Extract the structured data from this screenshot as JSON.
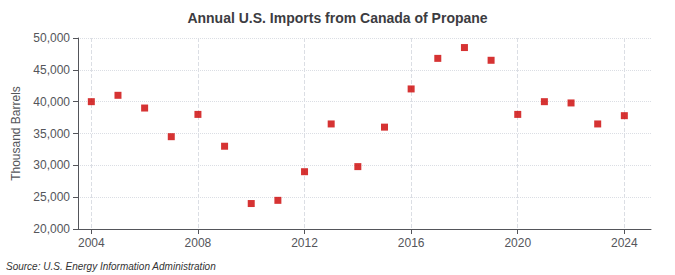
{
  "chart_data": {
    "type": "scatter",
    "title": "Annual U.S. Imports from Canada of Propane",
    "ylabel": "Thousand Barrels",
    "annotation": "Source: U.S. Energy Information Administration",
    "x": [
      2004,
      2005,
      2006,
      2007,
      2008,
      2009,
      2010,
      2011,
      2012,
      2013,
      2014,
      2015,
      2016,
      2017,
      2018,
      2019,
      2020,
      2021,
      2022,
      2023,
      2024
    ],
    "values": [
      40000,
      41000,
      39000,
      34500,
      38000,
      33000,
      24000,
      24500,
      29000,
      36500,
      29800,
      36000,
      42000,
      46800,
      48500,
      46500,
      38000,
      40000,
      39800,
      36500,
      37800
    ],
    "color": "#cc0000",
    "marker": "square",
    "xlim": [
      2003.5,
      2025
    ],
    "xticks": [
      2004,
      2008,
      2012,
      2016,
      2020,
      2024
    ],
    "ylim": [
      20000,
      50000
    ],
    "yticks": [
      {
        "value": 20000,
        "label": "20,000"
      },
      {
        "value": 25000,
        "label": "25,000"
      },
      {
        "value": 30000,
        "label": "30,000"
      },
      {
        "value": 35000,
        "label": "35,000"
      },
      {
        "value": 40000,
        "label": "40,000"
      },
      {
        "value": 45000,
        "label": "45,000"
      },
      {
        "value": 50000,
        "label": "50,000"
      }
    ],
    "grid": true
  }
}
